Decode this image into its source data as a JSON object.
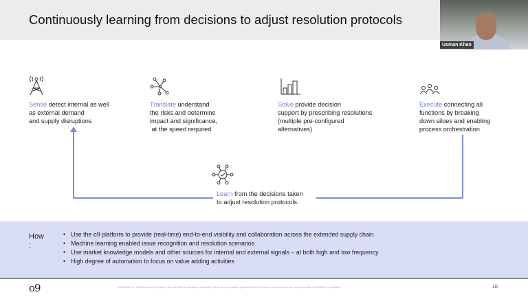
{
  "title": "Continuously learning from decisions to adjust resolution protocols",
  "participant": {
    "name": "Usman Khan"
  },
  "colors": {
    "accent": "#6e7fd4",
    "how_bg": "#d9ddf6"
  },
  "steps": [
    {
      "icon": "antenna-tower-icon",
      "keyword": "Sense",
      "text": [
        " detect internal as well",
        "as external demand",
        "and supply disruptions"
      ]
    },
    {
      "icon": "network-nodes-icon",
      "keyword": "Translate",
      "text": [
        " understand",
        "the risks and determine",
        "impact and significance,",
        " at the speed required"
      ]
    },
    {
      "icon": "bar-chart-icon",
      "keyword": "Solve",
      "text": [
        " provide decision",
        "support by prescribing resolutions",
        "(multiple pre-configured",
        "alternatives)"
      ]
    },
    {
      "icon": "people-group-icon",
      "keyword": "Execute",
      "text": [
        " connecting all",
        "functions by breaking",
        "down siloes and enabling",
        "process orchestration"
      ]
    }
  ],
  "learn": {
    "icon": "hub-check-icon",
    "keyword": "Learn",
    "text": [
      " from the decisions taken",
      "to adjust resolution protocols."
    ]
  },
  "how": {
    "label": "How\n:",
    "items": [
      "Use the o9 platform to provide (real-time) end-to-end visibility and collaboration across the extended supply chain",
      "Machine learning enabled issue recognition and resolution scenarios",
      "Use market knowledge models and other sources for internal and external signals – at both high and low frequency",
      "High degree of automation to focus on value adding activities"
    ]
  },
  "footer": {
    "logo": "o9",
    "disclaimer": "o9 Solutions, Inc. Confidential and Proprietary. Your use of these materials is governed by the terms of your written agreement with o9 Solutions. All unauthorized use and reproduction or distribution is prohibited.",
    "page": "10"
  }
}
